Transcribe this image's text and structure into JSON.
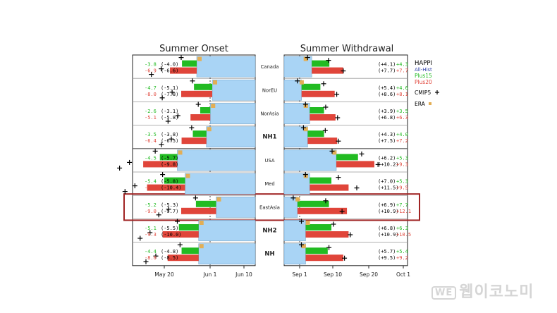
{
  "chart_data": {
    "type": "bar",
    "panels": [
      {
        "title": "Summer Onset",
        "ticks": [
          "May 20",
          "Jun 1",
          "Jun 10"
        ]
      },
      {
        "title": "Summer Withdrawal",
        "ticks": [
          "Sep 1",
          "Sep 10",
          "Sep 20",
          "Oct 1"
        ]
      }
    ],
    "legend": {
      "title": "HAPPI",
      "subtitle": "All-Hist",
      "plus15": "Plus15",
      "plus20": "Plus20",
      "cmip5": "CMIP5",
      "era": "ERA"
    },
    "colors": {
      "hist": "#a9d4f5",
      "plus15": "#22bb22",
      "plus20": "#e0453a",
      "era": "#e3ae55",
      "highlight": "#a02323"
    },
    "highlight_region": "EastAsia",
    "regions": [
      {
        "name": "Canada",
        "onset": {
          "p15": "-3.8",
          "p20": "-6.9",
          "c15": "(-4.0)",
          "c20": "(-6.6)"
        },
        "withdrawal": {
          "c15": "(+4.1)",
          "c20": "(+7.7)",
          "p15": "+4.3",
          "p20": "+7.7"
        },
        "onset_days": {
          "hist": 8.0,
          "p15": -3.8,
          "p20": -6.9,
          "cm15": -4.0,
          "cm20": -6.6,
          "era": 7.5
        },
        "wd_days": {
          "hist": 4.0,
          "p15": 4.3,
          "p20": 7.7,
          "cm15": 4.1,
          "cm20": 7.7,
          "era": 1.5
        }
      },
      {
        "name": "NorEU",
        "onset": {
          "p15": "-4.7",
          "p20": "-8.0",
          "c15": "(-5.1)",
          "c20": "(-7.8)"
        },
        "withdrawal": {
          "c15": "(+5.4)",
          "c20": "(+8.6)",
          "p15": "+4.6",
          "p20": "+8.1"
        },
        "onset_days": {
          "hist": 4.0,
          "p15": -4.7,
          "p20": -8.0,
          "cm15": -5.1,
          "cm20": -7.8,
          "era": 3.5
        },
        "wd_days": {
          "hist": 1.5,
          "p15": 4.6,
          "p20": 8.1,
          "cm15": 5.4,
          "cm20": 8.6,
          "era": 0.5
        }
      },
      {
        "name": "NorAsia",
        "onset": {
          "p15": "-2.6",
          "p20": "-5.1",
          "c15": "(-3.1)",
          "c20": "(-5.8)"
        },
        "withdrawal": {
          "c15": "(+3.9)",
          "c20": "(+6.8)",
          "p15": "+3.5",
          "p20": "+6.3"
        },
        "onset_days": {
          "hist": 4.5,
          "p15": -2.6,
          "p20": -5.1,
          "cm15": -3.1,
          "cm20": -5.8,
          "era": 4.0
        },
        "wd_days": {
          "hist": 3.5,
          "p15": 3.5,
          "p20": 6.3,
          "cm15": 3.9,
          "cm20": 6.8,
          "era": 1.5
        }
      },
      {
        "name": "NH1",
        "onset": {
          "p15": "-3.5",
          "p20": "-6.4",
          "c15": "(-3.8)",
          "c20": "(-6.5)"
        },
        "withdrawal": {
          "c15": "(+4.3)",
          "c20": "(+7.5)",
          "p15": "+4.0",
          "p20": "+7.2"
        },
        "onset_days": {
          "hist": 5.5,
          "p15": -3.5,
          "p20": -6.4,
          "cm15": -3.8,
          "cm20": -6.5,
          "era": 5.0
        },
        "wd_days": {
          "hist": 3.0,
          "p15": 4.0,
          "p20": 7.2,
          "cm15": 4.3,
          "cm20": 7.5,
          "era": 1.5
        }
      },
      {
        "name": "USA",
        "onset": {
          "p15": "-4.5",
          "p20": "-8.8",
          "c15": "(-5.7)",
          "c20": "(-9.8)"
        },
        "withdrawal": {
          "c15": "(+6.2)",
          "c20": "(+10.2)",
          "p15": "+5.3",
          "p20": "+9.3"
        },
        "onset_days": {
          "hist": 13.0,
          "p15": -4.5,
          "p20": -8.8,
          "cm15": -5.7,
          "cm20": -9.8,
          "era": 11.5
        },
        "wd_days": {
          "hist": 10.0,
          "p15": 5.3,
          "p20": 9.3,
          "cm15": 6.2,
          "cm20": 10.2,
          "era": 8.5
        }
      },
      {
        "name": "Med",
        "onset": {
          "p15": "-5.4",
          "p20": "-9.8",
          "c15": "(-5.8)",
          "c20": "(-10.4)"
        },
        "withdrawal": {
          "c15": "(+7.0)",
          "c20": "(+11.5)",
          "p15": "+5.3",
          "p20": "+9.5"
        },
        "onset_days": {
          "hist": 11.0,
          "p15": -5.4,
          "p20": -9.8,
          "cm15": -5.8,
          "cm20": -10.4,
          "era": 10.0
        },
        "wd_days": {
          "hist": 3.5,
          "p15": 5.3,
          "p20": 9.5,
          "cm15": 7.0,
          "cm20": 11.5,
          "era": 1.5
        }
      },
      {
        "name": "EastAsia",
        "onset": {
          "p15": "-5.2",
          "p20": "-9.0",
          "c15": "(-5.3)",
          "c20": "(-9.7)"
        },
        "withdrawal": {
          "c15": "(+6.9)",
          "c20": "(+10.9)",
          "p15": "+7.7",
          "p20": "+12.1"
        },
        "onset_days": {
          "hist": 3.0,
          "p15": -5.2,
          "p20": -9.0,
          "cm15": -5.3,
          "cm20": -9.7,
          "era": 2.5
        },
        "wd_days": {
          "hist": 0.5,
          "p15": 7.7,
          "p20": 12.1,
          "cm15": 6.9,
          "cm20": 10.9,
          "era": -0.5
        }
      },
      {
        "name": "NH2",
        "onset": {
          "p15": "-5.1",
          "p20": "-9.3",
          "c15": "(-5.5)",
          "c20": "(-10.0)"
        },
        "withdrawal": {
          "c15": "(+6.8)",
          "c20": "(+10.9)",
          "p15": "+6.3",
          "p20": "+10.5"
        },
        "onset_days": {
          "hist": 7.5,
          "p15": -5.1,
          "p20": -9.3,
          "cm15": -5.5,
          "cm20": -10.0,
          "era": 7.0
        },
        "wd_days": {
          "hist": 2.5,
          "p15": 6.3,
          "p20": 10.5,
          "cm15": 6.8,
          "cm20": 10.9,
          "era": 2.0
        }
      },
      {
        "name": "NH",
        "onset": {
          "p15": "-4.4",
          "p20": "-8.0",
          "c15": "(-4.8)",
          "c20": "(-8.5)"
        },
        "withdrawal": {
          "c15": "(+5.7)",
          "c20": "(+9.5)",
          "p15": "+5.4",
          "p20": "+9.2"
        },
        "onset_days": {
          "hist": 7.5,
          "p15": -4.4,
          "p20": -8.0,
          "cm15": -4.8,
          "cm20": -8.5,
          "era": 7.0
        },
        "wd_days": {
          "hist": 2.5,
          "p15": 5.4,
          "p20": 9.2,
          "cm15": 5.7,
          "cm20": 9.5,
          "era": 1.0
        }
      }
    ]
  },
  "watermark": {
    "logo": "WE",
    "text": "웹이코노미"
  }
}
